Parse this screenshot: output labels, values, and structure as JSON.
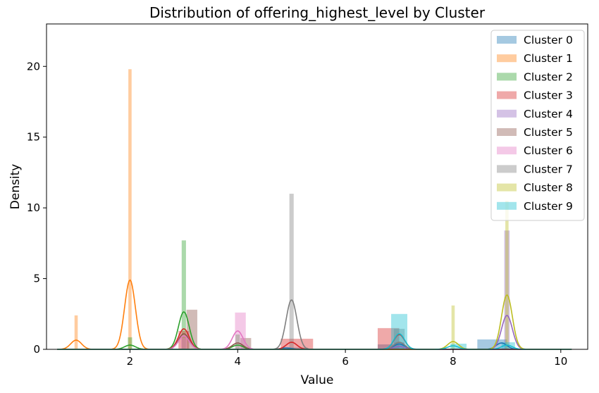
{
  "chart_data": {
    "type": "bar",
    "title": "Distribution of offering_highest_level by Cluster",
    "xlabel": "Value",
    "ylabel": "Density",
    "xlim": [
      0.45,
      10.5
    ],
    "ylim": [
      0,
      23
    ],
    "xticks": [
      2,
      4,
      6,
      8,
      10
    ],
    "yticks": [
      0,
      5,
      10,
      15,
      20
    ],
    "grid": false,
    "legend_position": "top-right",
    "series": [
      {
        "name": "Cluster 0",
        "color": "#1f77b4",
        "bars": [
          {
            "x0": 4.8,
            "x1": 5.3,
            "y": 0.12
          },
          {
            "x0": 6.6,
            "x1": 7.1,
            "y": 0.35
          },
          {
            "x0": 8.45,
            "x1": 9.0,
            "y": 0.7
          }
        ],
        "kde": [
          [
            4.9,
            0.1
          ],
          [
            7.0,
            0.38
          ],
          [
            8.9,
            0.45
          ]
        ]
      },
      {
        "name": "Cluster 1",
        "color": "#ff7f0e",
        "bars": [
          {
            "x0": 0.97,
            "x1": 1.03,
            "y": 2.4
          },
          {
            "x0": 1.97,
            "x1": 2.03,
            "y": 19.8
          }
        ],
        "kde": [
          [
            1.0,
            0.65
          ],
          [
            2.0,
            4.9
          ]
        ]
      },
      {
        "name": "Cluster 2",
        "color": "#2ca02c",
        "bars": [
          {
            "x0": 1.96,
            "x1": 2.04,
            "y": 0.85
          },
          {
            "x0": 2.96,
            "x1": 3.04,
            "y": 7.7
          },
          {
            "x0": 3.96,
            "x1": 4.04,
            "y": 1.05
          }
        ],
        "kde": [
          [
            2.0,
            0.3
          ],
          [
            3.0,
            2.65
          ],
          [
            4.0,
            0.3
          ]
        ]
      },
      {
        "name": "Cluster 3",
        "color": "#d62728",
        "bars": [
          {
            "x0": 2.9,
            "x1": 3.1,
            "y": 1.3
          },
          {
            "x0": 4.8,
            "x1": 5.4,
            "y": 0.75
          },
          {
            "x0": 6.6,
            "x1": 7.0,
            "y": 1.5
          }
        ],
        "kde": [
          [
            3.0,
            1.45
          ],
          [
            5.0,
            0.5
          ],
          [
            7.0,
            1.05
          ]
        ]
      },
      {
        "name": "Cluster 4",
        "color": "#9467bd",
        "bars": [
          {
            "x0": 6.9,
            "x1": 7.1,
            "y": 0.5
          },
          {
            "x0": 8.95,
            "x1": 9.05,
            "y": 8.4
          }
        ],
        "kde": [
          [
            7.0,
            0.2
          ],
          [
            9.0,
            2.4
          ]
        ]
      },
      {
        "name": "Cluster 5",
        "color": "#8c564b",
        "bars": [
          {
            "x0": 3.05,
            "x1": 3.25,
            "y": 2.8
          },
          {
            "x0": 4.05,
            "x1": 4.25,
            "y": 0.8
          }
        ],
        "kde": [
          [
            3.0,
            1.1
          ],
          [
            4.0,
            0.45
          ]
        ]
      },
      {
        "name": "Cluster 6",
        "color": "#e377c2",
        "bars": [
          {
            "x0": 2.95,
            "x1": 3.05,
            "y": 0.8
          },
          {
            "x0": 3.95,
            "x1": 4.15,
            "y": 2.6
          }
        ],
        "kde": [
          [
            3.0,
            0.95
          ],
          [
            4.0,
            1.3
          ]
        ]
      },
      {
        "name": "Cluster 7",
        "color": "#7f7f7f",
        "bars": [
          {
            "x0": 4.96,
            "x1": 5.04,
            "y": 11.0
          },
          {
            "x0": 6.9,
            "x1": 7.1,
            "y": 1.45
          }
        ],
        "kde": [
          [
            5.0,
            3.5
          ],
          [
            7.0,
            0.5
          ]
        ]
      },
      {
        "name": "Cluster 8",
        "color": "#bcbd22",
        "bars": [
          {
            "x0": 7.97,
            "x1": 8.03,
            "y": 3.1
          },
          {
            "x0": 8.97,
            "x1": 9.03,
            "y": 10.5
          }
        ],
        "kde": [
          [
            8.0,
            0.55
          ],
          [
            9.0,
            3.85
          ]
        ]
      },
      {
        "name": "Cluster 9",
        "color": "#17becf",
        "bars": [
          {
            "x0": 6.85,
            "x1": 7.15,
            "y": 2.5
          },
          {
            "x0": 7.95,
            "x1": 8.25,
            "y": 0.4
          },
          {
            "x0": 8.9,
            "x1": 9.15,
            "y": 0.5
          }
        ],
        "kde": [
          [
            7.0,
            1.1
          ],
          [
            8.0,
            0.25
          ],
          [
            9.0,
            0.3
          ]
        ]
      }
    ]
  }
}
